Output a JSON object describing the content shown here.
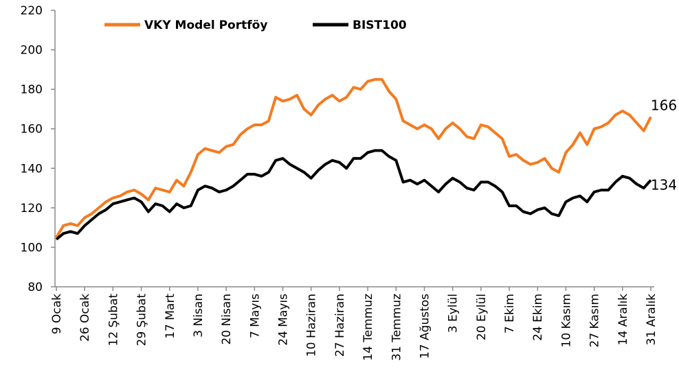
{
  "chart_data": {
    "type": "line",
    "categories": [
      "9 Ocak",
      null,
      null,
      null,
      "26 Ocak",
      null,
      null,
      null,
      "12 Şubat",
      null,
      null,
      null,
      "29 Şubat",
      null,
      null,
      null,
      "17 Mart",
      null,
      null,
      null,
      "3 Nisan",
      null,
      null,
      null,
      "20 Nisan",
      null,
      null,
      null,
      "7 Mayıs",
      null,
      null,
      null,
      "24 Mayıs",
      null,
      null,
      null,
      "10 Haziran",
      null,
      null,
      null,
      "27 Haziran",
      null,
      null,
      null,
      "14 Temmuz",
      null,
      null,
      null,
      "31 Temmuz",
      null,
      null,
      null,
      "17 Ağustos",
      null,
      null,
      null,
      "3 Eylül",
      null,
      null,
      null,
      "20 Eylül",
      null,
      null,
      null,
      "7 Ekim",
      null,
      null,
      null,
      "24 Ekim",
      null,
      null,
      null,
      "10 Kasım",
      null,
      null,
      null,
      "27 Kasım",
      null,
      null,
      null,
      "14 Aralık",
      null,
      null,
      null,
      "31 Aralık"
    ],
    "series": [
      {
        "name": "VKY Model Portföy",
        "color": "#f47b20",
        "values": [
          105,
          111,
          112,
          111,
          115,
          117,
          120,
          123,
          125,
          126,
          128,
          129,
          127,
          124,
          130,
          129,
          128,
          134,
          131,
          138,
          147,
          150,
          149,
          148,
          151,
          152,
          157,
          160,
          162,
          162,
          164,
          176,
          174,
          175,
          177,
          170,
          167,
          172,
          175,
          177,
          174,
          176,
          181,
          180,
          184,
          185,
          185,
          179,
          175,
          164,
          162,
          160,
          162,
          160,
          155,
          160,
          163,
          160,
          156,
          155,
          162,
          161,
          158,
          155,
          146,
          147,
          144,
          142,
          143,
          145,
          140,
          138,
          148,
          152,
          158,
          152,
          160,
          161,
          163,
          167,
          169,
          167,
          163,
          159,
          166
        ]
      },
      {
        "name": "BIST100",
        "color": "#000000",
        "values": [
          104,
          107,
          108,
          107,
          111,
          114,
          117,
          119,
          122,
          123,
          124,
          125,
          123,
          118,
          122,
          121,
          118,
          122,
          120,
          121,
          129,
          131,
          130,
          128,
          129,
          131,
          134,
          137,
          137,
          136,
          138,
          144,
          145,
          142,
          140,
          138,
          135,
          139,
          142,
          144,
          143,
          140,
          145,
          145,
          148,
          149,
          149,
          146,
          144,
          133,
          134,
          132,
          134,
          131,
          128,
          132,
          135,
          133,
          130,
          129,
          133,
          133,
          131,
          128,
          121,
          121,
          118,
          117,
          119,
          120,
          117,
          116,
          123,
          125,
          126,
          123,
          128,
          129,
          129,
          133,
          136,
          135,
          132,
          130,
          134
        ]
      }
    ],
    "ylim": [
      80,
      220
    ],
    "yticks": [
      80,
      100,
      120,
      140,
      160,
      180,
      200,
      220
    ],
    "grid": false,
    "legend": "top"
  }
}
